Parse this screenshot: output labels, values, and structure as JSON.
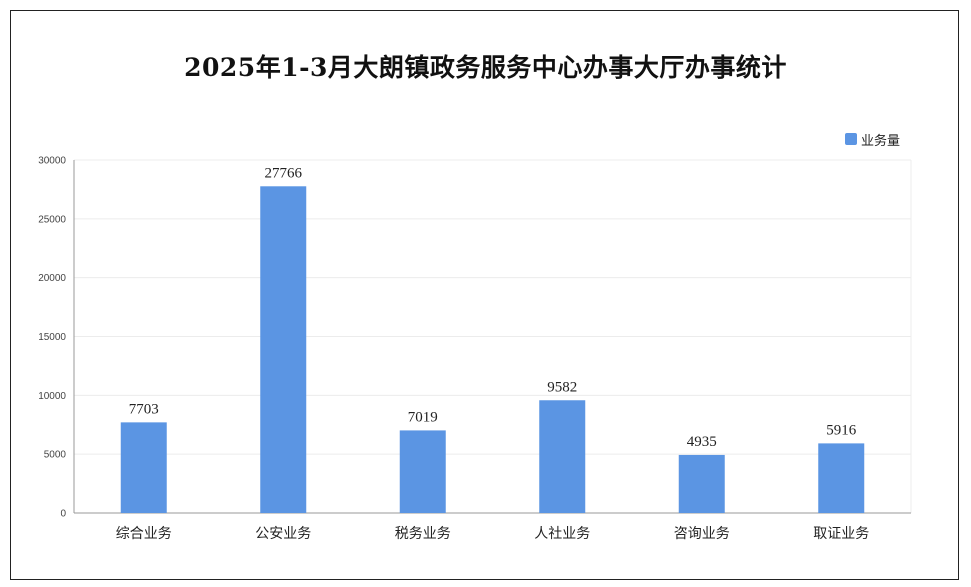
{
  "chart_data": {
    "type": "bar",
    "title": "2025年1-3月大朗镇政务服务中心办事大厅办事统计",
    "xlabel": "",
    "ylabel": "",
    "categories": [
      "综合业务",
      "公安业务",
      "税务业务",
      "人社业务",
      "咨询业务",
      "取证业务"
    ],
    "series": [
      {
        "name": "业务量",
        "values": [
          7703,
          27766,
          7019,
          9582,
          4935,
          5916
        ]
      }
    ],
    "ylim": [
      0,
      30000
    ],
    "yticks": [
      0,
      5000,
      10000,
      15000,
      20000,
      25000,
      30000
    ],
    "grid": true,
    "legend_position": "top-right",
    "bar_color": "#5b95e3"
  }
}
